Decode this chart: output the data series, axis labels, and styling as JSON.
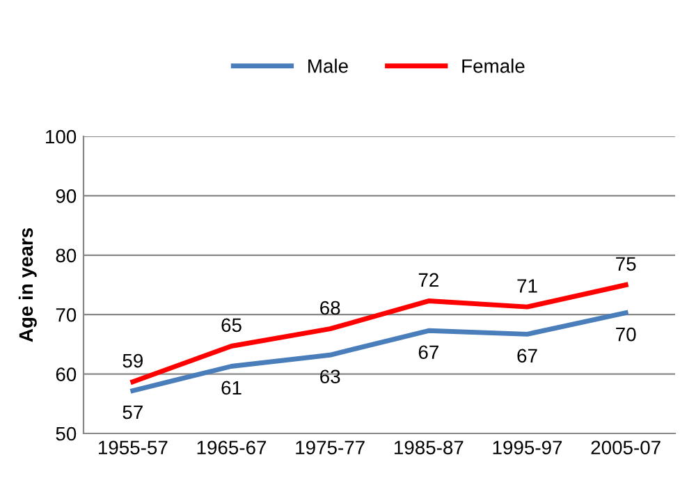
{
  "chart_data": {
    "type": "line",
    "ylabel": "Age in years",
    "categories": [
      "1955-57",
      "1965-67",
      "1975-77",
      "1985-87",
      "1995-97",
      "2005-07"
    ],
    "series": [
      {
        "name": "Male",
        "color": "#4a7ebb",
        "values": [
          57.2,
          61.3,
          63.2,
          67.3,
          66.7,
          70.3
        ],
        "value_labels": [
          "57",
          "61",
          "63",
          "67",
          "67",
          "70"
        ]
      },
      {
        "name": "Female",
        "color": "#ff0000",
        "values": [
          58.7,
          64.7,
          67.6,
          72.3,
          71.3,
          75.0
        ],
        "value_labels": [
          "59",
          "65",
          "68",
          "72",
          "71",
          "75"
        ]
      }
    ],
    "ylim": [
      50,
      100
    ],
    "yticks": [
      50,
      60,
      70,
      80,
      90,
      100
    ],
    "grid": "y",
    "legend": "top",
    "marker": "none",
    "line_style": "solid"
  }
}
